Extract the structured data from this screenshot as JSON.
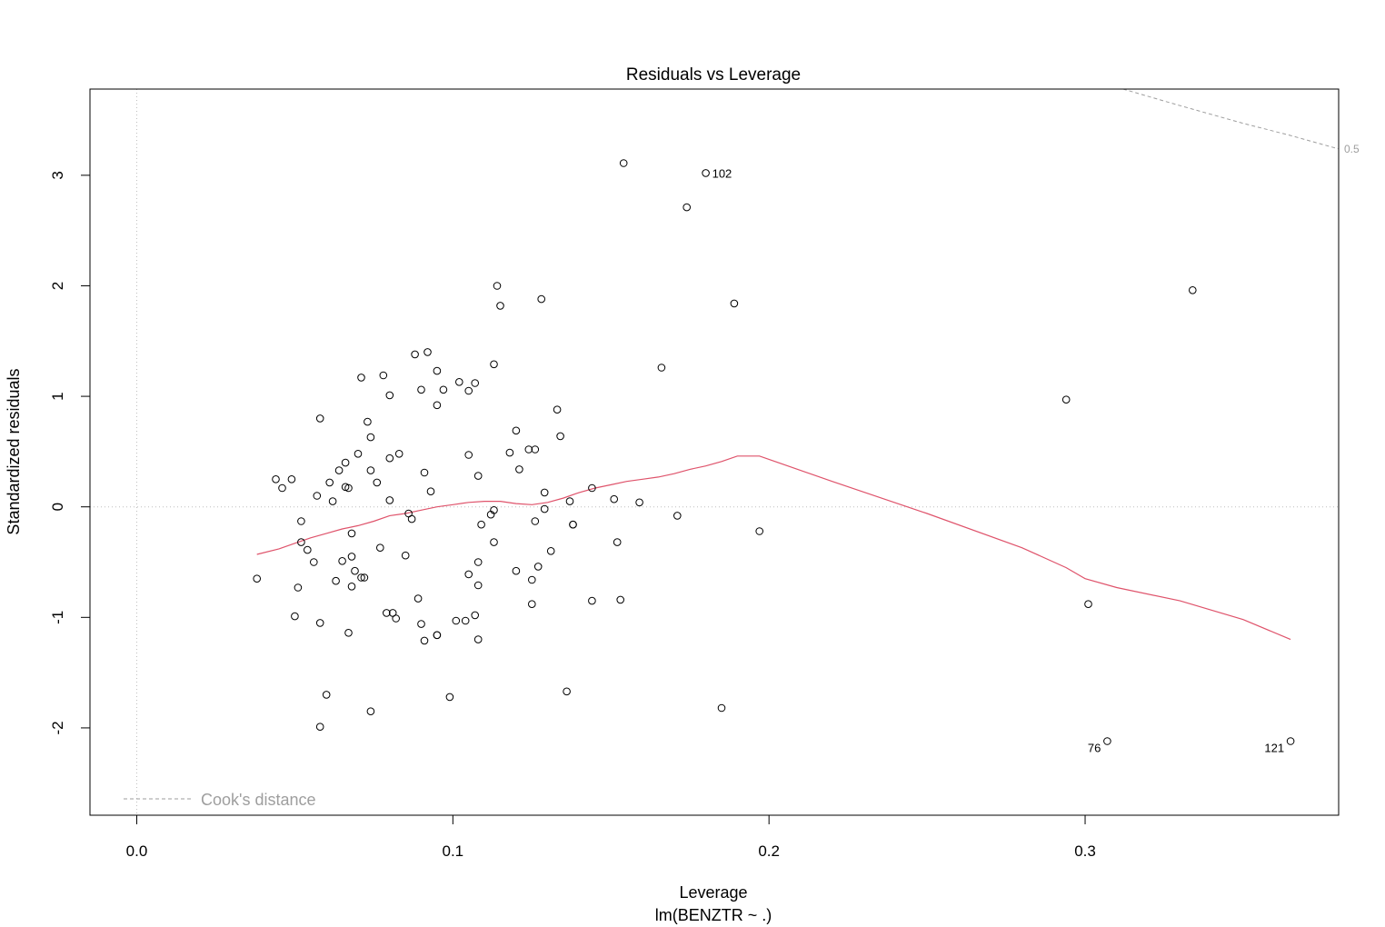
{
  "chart_data": {
    "type": "scatter",
    "title": "Residuals vs Leverage",
    "xlabel": "Leverage",
    "xlabel_sub": "lm(BENZTR ~ .)",
    "ylabel": "Standardized residuals",
    "xlim": [
      -0.0148,
      0.3802
    ],
    "ylim": [
      -2.79,
      3.78
    ],
    "xticks": [
      0.0,
      0.1,
      0.2,
      0.3
    ],
    "xtick_labels": [
      "0.0",
      "0.1",
      "0.2",
      "0.3"
    ],
    "yticks": [
      -2,
      -1,
      0,
      1,
      2,
      3
    ],
    "ytick_labels": [
      "-2",
      "-1",
      "0",
      "1",
      "2",
      "3"
    ],
    "reference_lines": {
      "vertical": 0,
      "horizontal": 0
    },
    "legend": {
      "position": "bottom-left",
      "label": "Cook's distance"
    },
    "cooks_contour": {
      "label": "0.5",
      "points": [
        [
          0.312,
          3.78
        ],
        [
          0.33,
          3.63
        ],
        [
          0.35,
          3.47
        ],
        [
          0.365,
          3.36
        ],
        [
          0.38,
          3.24
        ]
      ]
    },
    "colors": {
      "points": "#000000",
      "smoother": "#df536b",
      "reference": "#bebebe",
      "cooks": "#9e9e9e"
    },
    "points": [
      [
        0.038,
        -0.65
      ],
      [
        0.044,
        0.25
      ],
      [
        0.046,
        0.17
      ],
      [
        0.049,
        0.25
      ],
      [
        0.05,
        -0.99
      ],
      [
        0.051,
        -0.73
      ],
      [
        0.052,
        -0.13
      ],
      [
        0.052,
        -0.32
      ],
      [
        0.054,
        -0.39
      ],
      [
        0.056,
        -0.5
      ],
      [
        0.057,
        0.1
      ],
      [
        0.058,
        -1.05
      ],
      [
        0.058,
        0.8
      ],
      [
        0.058,
        -1.99
      ],
      [
        0.06,
        -1.7
      ],
      [
        0.061,
        0.22
      ],
      [
        0.062,
        0.05
      ],
      [
        0.063,
        -0.67
      ],
      [
        0.064,
        0.33
      ],
      [
        0.065,
        -0.49
      ],
      [
        0.066,
        0.18
      ],
      [
        0.066,
        0.4
      ],
      [
        0.067,
        -1.14
      ],
      [
        0.067,
        0.17
      ],
      [
        0.068,
        -0.72
      ],
      [
        0.068,
        -0.24
      ],
      [
        0.068,
        -0.45
      ],
      [
        0.069,
        -0.58
      ],
      [
        0.07,
        0.48
      ],
      [
        0.071,
        1.17
      ],
      [
        0.071,
        -0.64
      ],
      [
        0.072,
        -0.64
      ],
      [
        0.073,
        0.77
      ],
      [
        0.074,
        0.63
      ],
      [
        0.074,
        0.33
      ],
      [
        0.074,
        -1.85
      ],
      [
        0.076,
        0.22
      ],
      [
        0.077,
        -0.37
      ],
      [
        0.078,
        1.19
      ],
      [
        0.079,
        -0.96
      ],
      [
        0.08,
        0.06
      ],
      [
        0.08,
        1.01
      ],
      [
        0.08,
        0.44
      ],
      [
        0.081,
        -0.96
      ],
      [
        0.082,
        -1.01
      ],
      [
        0.083,
        0.48
      ],
      [
        0.085,
        -0.44
      ],
      [
        0.086,
        -0.06
      ],
      [
        0.087,
        -0.11
      ],
      [
        0.088,
        1.38
      ],
      [
        0.089,
        -0.83
      ],
      [
        0.09,
        -1.06
      ],
      [
        0.09,
        1.06
      ],
      [
        0.091,
        -1.21
      ],
      [
        0.091,
        0.31
      ],
      [
        0.092,
        1.4
      ],
      [
        0.093,
        0.14
      ],
      [
        0.095,
        0.92
      ],
      [
        0.095,
        1.23
      ],
      [
        0.095,
        -1.16
      ],
      [
        0.095,
        -1.16
      ],
      [
        0.097,
        1.06
      ],
      [
        0.099,
        -1.72
      ],
      [
        0.101,
        -1.03
      ],
      [
        0.102,
        1.13
      ],
      [
        0.104,
        -1.03
      ],
      [
        0.105,
        1.05
      ],
      [
        0.105,
        -0.61
      ],
      [
        0.105,
        0.47
      ],
      [
        0.107,
        -0.98
      ],
      [
        0.107,
        1.12
      ],
      [
        0.108,
        0.28
      ],
      [
        0.108,
        -0.71
      ],
      [
        0.108,
        -0.5
      ],
      [
        0.108,
        -1.2
      ],
      [
        0.109,
        -0.16
      ],
      [
        0.112,
        -0.07
      ],
      [
        0.113,
        -0.03
      ],
      [
        0.113,
        1.29
      ],
      [
        0.113,
        -0.32
      ],
      [
        0.114,
        2.0
      ],
      [
        0.115,
        1.82
      ],
      [
        0.118,
        0.49
      ],
      [
        0.12,
        -0.58
      ],
      [
        0.12,
        0.69
      ],
      [
        0.121,
        0.34
      ],
      [
        0.124,
        0.52
      ],
      [
        0.125,
        -0.66
      ],
      [
        0.125,
        -0.88
      ],
      [
        0.126,
        0.52
      ],
      [
        0.126,
        -0.13
      ],
      [
        0.127,
        -0.54
      ],
      [
        0.128,
        1.88
      ],
      [
        0.129,
        0.13
      ],
      [
        0.129,
        -0.02
      ],
      [
        0.131,
        -0.4
      ],
      [
        0.133,
        0.88
      ],
      [
        0.134,
        0.64
      ],
      [
        0.136,
        -1.67
      ],
      [
        0.137,
        0.05
      ],
      [
        0.138,
        -0.16
      ],
      [
        0.138,
        -0.16
      ],
      [
        0.144,
        0.17
      ],
      [
        0.144,
        -0.85
      ],
      [
        0.151,
        0.07
      ],
      [
        0.152,
        -0.32
      ],
      [
        0.153,
        -0.84
      ],
      [
        0.154,
        3.11
      ],
      [
        0.159,
        0.04
      ],
      [
        0.166,
        1.26
      ],
      [
        0.171,
        -0.08
      ],
      [
        0.174,
        2.71
      ],
      [
        0.185,
        -1.82
      ],
      [
        0.189,
        1.84
      ],
      [
        0.197,
        -0.22
      ],
      [
        0.294,
        0.97
      ],
      [
        0.301,
        -0.88
      ],
      [
        0.334,
        1.96
      ]
    ],
    "labeled_points": [
      {
        "label": "102",
        "x": 0.18,
        "y": 3.02,
        "side": "right"
      },
      {
        "label": "76",
        "x": 0.307,
        "y": -2.12,
        "side": "left"
      },
      {
        "label": "121",
        "x": 0.365,
        "y": -2.12,
        "side": "left"
      }
    ],
    "smoother": [
      [
        0.038,
        -0.43
      ],
      [
        0.045,
        -0.38
      ],
      [
        0.05,
        -0.33
      ],
      [
        0.055,
        -0.28
      ],
      [
        0.06,
        -0.24
      ],
      [
        0.065,
        -0.2
      ],
      [
        0.07,
        -0.17
      ],
      [
        0.075,
        -0.13
      ],
      [
        0.08,
        -0.08
      ],
      [
        0.085,
        -0.06
      ],
      [
        0.09,
        -0.03
      ],
      [
        0.095,
        0.0
      ],
      [
        0.1,
        0.02
      ],
      [
        0.105,
        0.04
      ],
      [
        0.11,
        0.05
      ],
      [
        0.115,
        0.05
      ],
      [
        0.12,
        0.03
      ],
      [
        0.125,
        0.02
      ],
      [
        0.13,
        0.04
      ],
      [
        0.135,
        0.08
      ],
      [
        0.14,
        0.13
      ],
      [
        0.145,
        0.17
      ],
      [
        0.15,
        0.2
      ],
      [
        0.155,
        0.23
      ],
      [
        0.16,
        0.25
      ],
      [
        0.165,
        0.27
      ],
      [
        0.17,
        0.3
      ],
      [
        0.175,
        0.34
      ],
      [
        0.18,
        0.37
      ],
      [
        0.185,
        0.41
      ],
      [
        0.19,
        0.46
      ],
      [
        0.197,
        0.46
      ],
      [
        0.22,
        0.23
      ],
      [
        0.25,
        -0.06
      ],
      [
        0.28,
        -0.37
      ],
      [
        0.294,
        -0.55
      ],
      [
        0.3,
        -0.65
      ],
      [
        0.31,
        -0.73
      ],
      [
        0.33,
        -0.85
      ],
      [
        0.35,
        -1.02
      ],
      [
        0.365,
        -1.2
      ]
    ]
  }
}
